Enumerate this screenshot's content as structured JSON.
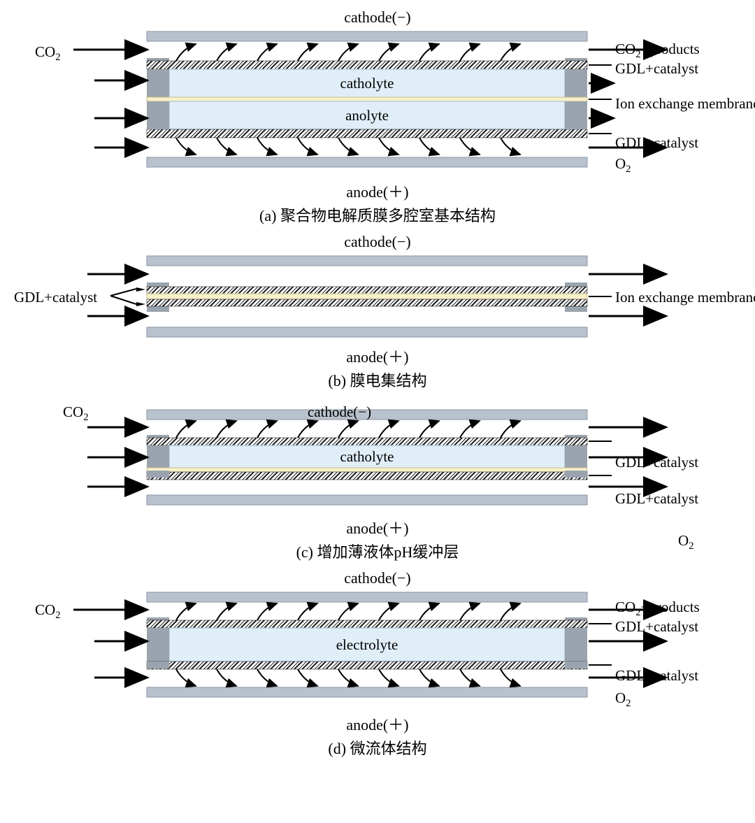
{
  "colors": {
    "plate": "#b8c2cc",
    "plateStroke": "#8a96a2",
    "sealer": "#9aa4ae",
    "electrolyte": "#e0eef7",
    "electrolyteStroke": "#9fb8cc",
    "membrane": "#f7f0c9",
    "arrow": "#000000",
    "hatch": "#1a1a1a",
    "background": "#ffffff"
  },
  "labels": {
    "cathode": "cathode(−)",
    "anode": "anode(＋)",
    "co2": "CO",
    "co2sub": "2",
    "o2": "O",
    "o2sub": "2",
    "co2products": "+products",
    "gdl": "GDL+catalyst",
    "iem": "Ion exchange membrane",
    "catholyte": "catholyte",
    "anolyte": "anolyte",
    "electrolyte": "electrolyte"
  },
  "panels": {
    "a": {
      "caption": "(a) 聚合物电解质膜多腔室基本结构"
    },
    "b": {
      "caption": "(b) 膜电集结构"
    },
    "c": {
      "caption": "(c) 增加薄液体pH缓冲层"
    },
    "d": {
      "caption": "(d) 微流体结构"
    }
  },
  "geometry": {
    "svgWidth": 1060,
    "cellLeft": 200,
    "cellRight": 830,
    "sealerW": 32,
    "arrowSpacing": 58,
    "curvedArrowCount": 10
  }
}
